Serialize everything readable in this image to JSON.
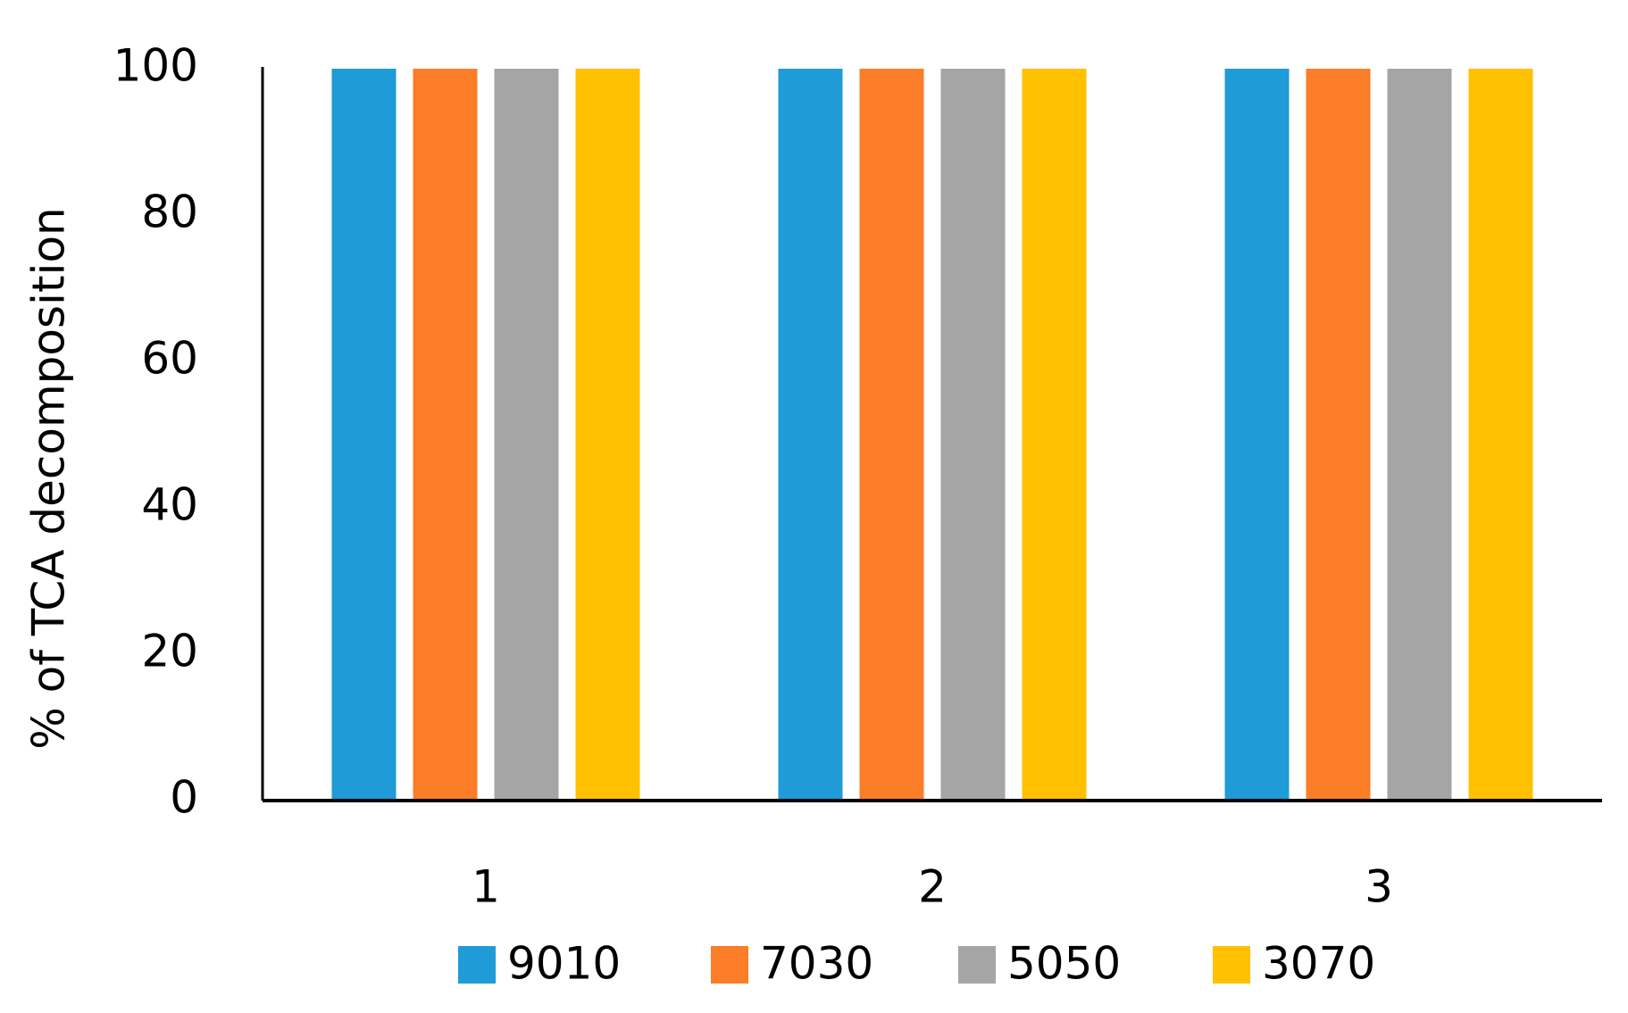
{
  "chart_data": {
    "type": "bar",
    "y_label": "% of TCA decomposition",
    "categories": [
      "1",
      "2",
      "3"
    ],
    "series": [
      {
        "name": "9010",
        "color": "#1f9bd7",
        "values": [
          100,
          100,
          100
        ]
      },
      {
        "name": "7030",
        "color": "#fb7d28",
        "values": [
          100,
          100,
          100
        ]
      },
      {
        "name": "5050",
        "color": "#a5a5a5",
        "values": [
          100,
          100,
          100
        ]
      },
      {
        "name": "3070",
        "color": "#ffc000",
        "values": [
          100,
          100,
          100
        ]
      }
    ],
    "ylim": [
      0,
      100
    ],
    "yticks": [
      0,
      20,
      40,
      60,
      80,
      100
    ],
    "grid": false,
    "legend": "bottom"
  }
}
